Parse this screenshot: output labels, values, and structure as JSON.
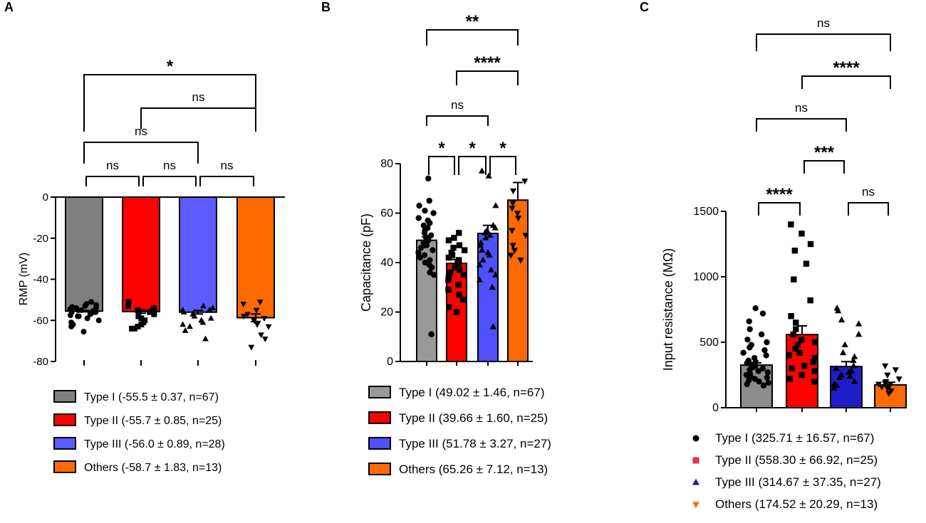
{
  "chart_data": [
    {
      "panel": "A",
      "type": "bar",
      "ylabel": "RMP (mV)",
      "xlabel": "",
      "ylim": [
        -80,
        0
      ],
      "yticks": [
        0,
        -20,
        -40,
        -60,
        -80
      ],
      "ytick_labels": [
        "0",
        "-20",
        "-40",
        "-60",
        "-80"
      ],
      "bars_hang_from_top": true,
      "categories": [
        "Type I",
        "Type II",
        "Type III",
        "Others"
      ],
      "values": [
        -55.5,
        -55.7,
        -56.0,
        -58.7
      ],
      "errors": [
        0.37,
        0.85,
        0.89,
        1.83
      ],
      "colors": [
        "#808080",
        "#ff0000",
        "#5b5bff",
        "#ff6a00"
      ],
      "points": [
        [
          -51,
          -52,
          -52.5,
          -53,
          -53.5,
          -54,
          -54,
          -54.5,
          -55,
          -55,
          -55.5,
          -56,
          -56,
          -56.5,
          -57,
          -57.5,
          -58,
          -58,
          -59,
          -60,
          -61,
          -62,
          -63,
          -65.5
        ],
        [
          -51,
          -53,
          -54,
          -55,
          -55,
          -56,
          -57,
          -58,
          -59,
          -60,
          -61,
          -62,
          -63,
          -64,
          -64
        ],
        [
          -53,
          -54,
          -55,
          -55,
          -56,
          -57,
          -58,
          -59,
          -60,
          -61,
          -62,
          -63,
          -65,
          -69
        ],
        [
          -51,
          -52,
          -55,
          -57,
          -58,
          -59,
          -60,
          -62,
          -63,
          -67,
          -69,
          -73
        ]
      ],
      "marker_shapes": [
        "circle",
        "square",
        "triangle",
        "triangle-down"
      ],
      "legend": [
        "Type I (-55.5 ± 0.37, n=67)",
        "Type II (-55.7 ± 0.85, n=25)",
        "Type III (-56.0 ± 0.89, n=28)",
        "Others (-58.7 ± 1.83, n=13)"
      ],
      "legend_style": "swatch",
      "comparisons": [
        {
          "a": 0,
          "b": 1,
          "label": "ns"
        },
        {
          "a": 1,
          "b": 2,
          "label": "ns"
        },
        {
          "a": 2,
          "b": 3,
          "label": "ns"
        },
        {
          "a": 0,
          "b": 2,
          "label": "ns"
        },
        {
          "a": 1,
          "b": 3,
          "label": "ns"
        },
        {
          "a": 0,
          "b": 3,
          "label": "*"
        }
      ]
    },
    {
      "panel": "B",
      "type": "bar",
      "ylabel": "Capacitance (pF)",
      "xlabel": "",
      "ylim": [
        0,
        80
      ],
      "yticks": [
        0,
        20,
        40,
        60,
        80
      ],
      "ytick_labels": [
        "0",
        "20",
        "40",
        "60",
        "80"
      ],
      "bars_hang_from_top": false,
      "categories": [
        "Type I",
        "Type II",
        "Type III",
        "Others"
      ],
      "values": [
        49.02,
        39.66,
        51.78,
        65.26
      ],
      "errors": [
        1.46,
        1.6,
        3.27,
        7.12
      ],
      "colors": [
        "#999999",
        "#ff0000",
        "#5050ff",
        "#ff6a00"
      ],
      "points": [
        [
          74,
          65,
          63,
          61,
          60,
          58,
          57,
          56,
          55,
          54,
          53,
          52,
          51,
          50,
          50,
          49,
          48,
          48,
          47,
          47,
          46,
          45,
          44,
          43,
          42,
          41,
          40,
          39,
          38,
          36,
          35,
          11
        ],
        [
          52,
          50,
          49,
          47,
          46,
          45,
          44,
          43,
          42,
          41,
          40,
          39,
          38,
          37,
          36,
          35,
          34,
          33,
          31,
          29,
          27,
          25,
          22,
          20
        ],
        [
          77,
          75,
          63,
          55,
          54,
          53,
          52,
          51,
          50,
          48,
          47,
          45,
          44,
          43,
          41,
          39,
          37,
          35,
          33,
          30,
          14
        ],
        [
          73,
          69,
          64,
          62,
          60,
          58,
          53,
          51,
          47,
          45,
          43,
          41
        ]
      ],
      "marker_shapes": [
        "circle",
        "square",
        "triangle",
        "triangle-down"
      ],
      "legend": [
        "Type I (49.02 ± 1.46, n=67)",
        "Type II (39.66 ± 1.60, n=25)",
        "Type III (51.78 ± 3.27, n=27)",
        "Others (65.26 ± 7.12, n=13)"
      ],
      "legend_style": "swatch",
      "comparisons": [
        {
          "a": 0,
          "b": 1,
          "label": "*"
        },
        {
          "a": 1,
          "b": 2,
          "label": "*"
        },
        {
          "a": 2,
          "b": 3,
          "label": "*"
        },
        {
          "a": 0,
          "b": 2,
          "label": "ns"
        },
        {
          "a": 1,
          "b": 3,
          "label": "****"
        },
        {
          "a": 0,
          "b": 3,
          "label": "**"
        }
      ]
    },
    {
      "panel": "C",
      "type": "bar",
      "ylabel": "Input resistance (MΩ)",
      "xlabel": "",
      "ylim": [
        0,
        1500
      ],
      "yticks": [
        0,
        500,
        1000,
        1500
      ],
      "ytick_labels": [
        "0",
        "500",
        "1000",
        "1500"
      ],
      "bars_hang_from_top": false,
      "categories": [
        "Type I",
        "Type II",
        "Type III",
        "Others"
      ],
      "values": [
        325.71,
        558.3,
        314.67,
        174.52
      ],
      "errors": [
        16.57,
        66.92,
        37.35,
        20.29
      ],
      "colors": [
        "#8c8c8c",
        "#ff0000",
        "#1e1ec8",
        "#ff6a00"
      ],
      "points": [
        [
          760,
          720,
          660,
          600,
          560,
          520,
          500,
          480,
          460,
          440,
          420,
          400,
          380,
          360,
          350,
          340,
          330,
          320,
          310,
          300,
          290,
          280,
          270,
          260,
          250,
          240,
          230,
          220,
          210,
          200,
          190,
          180,
          170
        ],
        [
          1400,
          1330,
          1250,
          1200,
          1100,
          980,
          820,
          700,
          650,
          600,
          560,
          520,
          500,
          480,
          450,
          420,
          400,
          380,
          350,
          320,
          300,
          280,
          250,
          220,
          200
        ],
        [
          760,
          740,
          670,
          640,
          560,
          480,
          420,
          390,
          360,
          320,
          300,
          280,
          270,
          250,
          240,
          230,
          200,
          180,
          170,
          150
        ],
        [
          320,
          290,
          250,
          220,
          200,
          190,
          180,
          170,
          160,
          150,
          130,
          110
        ]
      ],
      "marker_shapes": [
        "circle",
        "square",
        "triangle",
        "triangle-down"
      ],
      "legend": [
        "Type I (325.71 ± 16.57, n=67)",
        "Type II (558.30 ± 66.92, n=25)",
        "Type III (314.67 ± 37.35, n=27)",
        "Others (174.52 ± 20.29, n=13)"
      ],
      "legend_style": "marker",
      "legend_marker_colors": [
        "#000000",
        "#e8323c",
        "#1e1e96",
        "#ff6a00"
      ],
      "comparisons": [
        {
          "a": 0,
          "b": 1,
          "label": "****"
        },
        {
          "a": 2,
          "b": 3,
          "label": "ns"
        },
        {
          "a": 1,
          "b": 2,
          "label": "***"
        },
        {
          "a": 0,
          "b": 2,
          "label": "ns"
        },
        {
          "a": 1,
          "b": 3,
          "label": "****"
        },
        {
          "a": 0,
          "b": 3,
          "label": "ns"
        }
      ]
    }
  ]
}
